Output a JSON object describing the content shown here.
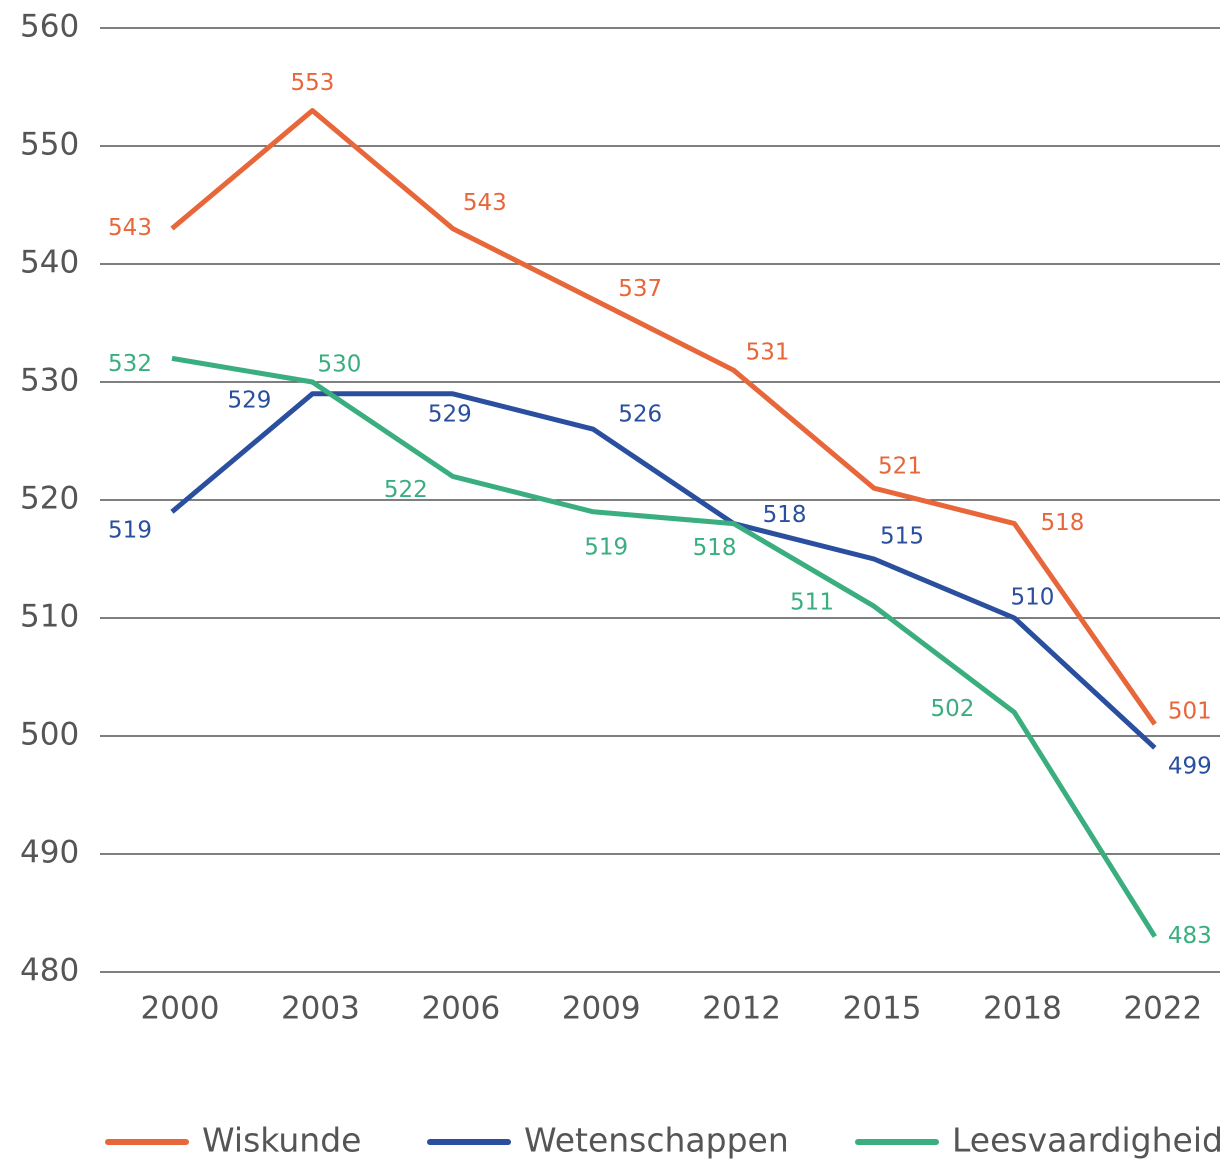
{
  "chart_data": {
    "type": "line",
    "categories": [
      "2000",
      "2003",
      "2006",
      "2009",
      "2012",
      "2015",
      "2018",
      "2022"
    ],
    "series": [
      {
        "name": "Wiskunde",
        "color": "#e8673a",
        "values": [
          543,
          553,
          543,
          537,
          531,
          521,
          518,
          501
        ]
      },
      {
        "name": "Wetenschappen",
        "color": "#2a4f9e",
        "values": [
          519,
          529,
          529,
          526,
          518,
          515,
          510,
          499
        ]
      },
      {
        "name": "Leesvaardigheid",
        "color": "#3aae7f",
        "values": [
          532,
          530,
          522,
          519,
          518,
          511,
          502,
          483
        ]
      }
    ],
    "ylim": [
      480,
      560
    ],
    "yticks": [
      480,
      490,
      500,
      510,
      520,
      530,
      540,
      550,
      560
    ],
    "grid": true,
    "legend": "bottom"
  }
}
